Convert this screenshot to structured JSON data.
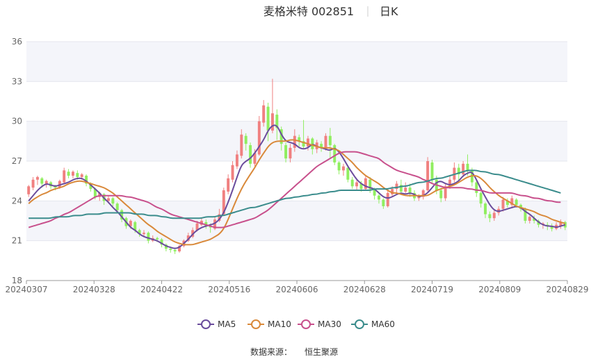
{
  "title": {
    "name": "麦格米特 002851",
    "period": "日K"
  },
  "source": {
    "label": "数据来源：",
    "value": "恒生聚源"
  },
  "colors": {
    "up": "#f08080",
    "down": "#90ee60",
    "ma5": "#6a4c9c",
    "ma10": "#d9893a",
    "ma30": "#c8508c",
    "ma60": "#3a8c8c",
    "band": "#f4f5fa",
    "grid": "#e4e6ee",
    "axis": "#999999"
  },
  "chart_data": {
    "type": "candlestick",
    "ylim": [
      18,
      36
    ],
    "yticks": [
      "18",
      "21",
      "24",
      "27",
      "30",
      "33",
      "36"
    ],
    "xticks": [
      "20240307",
      "20240328",
      "20240422",
      "20240516",
      "20240606",
      "20240628",
      "20240719",
      "20240809",
      "20240829"
    ],
    "legend": [
      "MA5",
      "MA10",
      "MA30",
      "MA60"
    ],
    "candles": [
      [
        24.5,
        25.1,
        25.2,
        24.3
      ],
      [
        25.0,
        25.6,
        25.8,
        24.8
      ],
      [
        25.6,
        25.8,
        25.9,
        25.2
      ],
      [
        25.7,
        25.3,
        25.8,
        25.0
      ],
      [
        25.3,
        25.5,
        25.6,
        25.0
      ],
      [
        25.4,
        25.1,
        25.5,
        24.9
      ],
      [
        25.1,
        25.0,
        25.2,
        24.8
      ],
      [
        25.0,
        25.5,
        25.6,
        24.9
      ],
      [
        25.4,
        26.3,
        26.5,
        25.3
      ],
      [
        26.2,
        25.9,
        26.4,
        25.7
      ],
      [
        25.9,
        26.2,
        26.3,
        25.7
      ],
      [
        26.1,
        25.8,
        26.3,
        25.6
      ],
      [
        25.8,
        26.0,
        26.1,
        25.6
      ],
      [
        25.9,
        25.3,
        26.0,
        25.1
      ],
      [
        25.3,
        24.9,
        25.4,
        24.7
      ],
      [
        24.9,
        24.3,
        25.0,
        24.1
      ],
      [
        24.3,
        24.6,
        24.7,
        24.0
      ],
      [
        24.5,
        24.0,
        24.6,
        23.7
      ],
      [
        24.0,
        24.2,
        24.4,
        23.8
      ],
      [
        24.2,
        23.8,
        24.3,
        23.6
      ],
      [
        23.8,
        23.3,
        23.9,
        23.1
      ],
      [
        23.3,
        22.6,
        23.4,
        22.4
      ],
      [
        22.7,
        22.1,
        22.8,
        21.9
      ],
      [
        22.1,
        22.5,
        22.6,
        21.9
      ],
      [
        22.4,
        21.8,
        22.5,
        21.6
      ],
      [
        21.8,
        21.5,
        21.9,
        21.3
      ],
      [
        21.5,
        21.6,
        21.8,
        21.3
      ],
      [
        21.6,
        21.0,
        21.7,
        20.8
      ],
      [
        21.0,
        21.2,
        21.4,
        20.9
      ],
      [
        21.2,
        21.1,
        21.3,
        20.9
      ],
      [
        21.1,
        20.7,
        21.2,
        20.5
      ],
      [
        20.7,
        20.4,
        20.8,
        20.2
      ],
      [
        20.4,
        20.3,
        20.5,
        20.1
      ],
      [
        20.3,
        20.2,
        20.4,
        20.0
      ],
      [
        20.2,
        20.6,
        20.7,
        20.1
      ],
      [
        20.6,
        21.0,
        21.1,
        20.5
      ],
      [
        21.0,
        21.4,
        21.6,
        20.9
      ],
      [
        21.3,
        21.8,
        22.0,
        21.2
      ],
      [
        21.8,
        22.3,
        22.5,
        21.7
      ],
      [
        22.2,
        22.5,
        22.7,
        22.1
      ],
      [
        22.4,
        22.1,
        22.6,
        21.9
      ],
      [
        22.1,
        22.0,
        22.3,
        21.6
      ],
      [
        21.9,
        22.6,
        22.8,
        21.8
      ],
      [
        22.5,
        23.0,
        23.4,
        22.4
      ],
      [
        23.0,
        24.8,
        25.0,
        22.9
      ],
      [
        24.7,
        25.7,
        26.0,
        24.5
      ],
      [
        25.6,
        26.7,
        27.0,
        25.4
      ],
      [
        26.6,
        27.5,
        27.8,
        26.4
      ],
      [
        27.4,
        29.0,
        29.4,
        27.2
      ],
      [
        28.9,
        28.3,
        29.1,
        27.8
      ],
      [
        28.2,
        26.8,
        28.4,
        26.5
      ],
      [
        26.8,
        27.6,
        27.9,
        26.6
      ],
      [
        27.5,
        30.0,
        30.4,
        27.4
      ],
      [
        29.9,
        31.2,
        31.6,
        29.6
      ],
      [
        31.1,
        29.3,
        31.4,
        28.5
      ],
      [
        29.3,
        30.6,
        33.2,
        29.1
      ],
      [
        30.5,
        29.5,
        30.9,
        28.6
      ],
      [
        29.4,
        28.3,
        29.6,
        27.8
      ],
      [
        28.2,
        27.2,
        28.4,
        26.9
      ],
      [
        27.2,
        28.0,
        28.3,
        26.9
      ],
      [
        28.0,
        28.9,
        29.4,
        27.7
      ],
      [
        28.8,
        28.5,
        29.0,
        28.1
      ],
      [
        28.5,
        28.1,
        30.1,
        27.9
      ],
      [
        28.1,
        28.7,
        28.9,
        27.8
      ],
      [
        28.7,
        27.9,
        28.8,
        27.5
      ],
      [
        27.9,
        28.4,
        28.6,
        27.6
      ],
      [
        28.3,
        28.0,
        28.5,
        27.7
      ],
      [
        28.0,
        28.9,
        29.1,
        27.8
      ],
      [
        28.9,
        28.2,
        29.5,
        27.2
      ],
      [
        28.2,
        26.9,
        28.3,
        26.7
      ],
      [
        26.9,
        26.3,
        27.0,
        26.0
      ],
      [
        26.3,
        26.6,
        26.8,
        25.9
      ],
      [
        26.5,
        25.6,
        26.7,
        25.4
      ],
      [
        25.6,
        25.1,
        25.8,
        24.9
      ],
      [
        25.1,
        25.4,
        25.6,
        24.8
      ],
      [
        25.3,
        24.9,
        25.5,
        24.7
      ],
      [
        24.9,
        25.7,
        25.9,
        24.8
      ],
      [
        25.6,
        24.9,
        25.8,
        24.6
      ],
      [
        24.9,
        24.4,
        25.0,
        24.1
      ],
      [
        24.4,
        24.1,
        24.5,
        23.8
      ],
      [
        24.1,
        23.6,
        24.2,
        23.4
      ],
      [
        23.6,
        24.6,
        24.8,
        23.5
      ],
      [
        24.5,
        24.9,
        25.1,
        24.3
      ],
      [
        24.9,
        25.3,
        25.5,
        24.6
      ],
      [
        25.2,
        24.7,
        25.6,
        24.5
      ],
      [
        24.7,
        25.0,
        25.4,
        24.6
      ],
      [
        25.0,
        24.6,
        25.3,
        24.3
      ],
      [
        24.6,
        24.2,
        24.8,
        24.0
      ],
      [
        24.2,
        24.3,
        24.5,
        24.0
      ],
      [
        24.3,
        24.8,
        24.9,
        24.1
      ],
      [
        24.8,
        27.0,
        27.3,
        24.7
      ],
      [
        26.9,
        25.6,
        27.1,
        25.3
      ],
      [
        25.6,
        24.8,
        25.9,
        24.5
      ],
      [
        24.8,
        24.2,
        25.0,
        23.9
      ],
      [
        24.2,
        25.1,
        25.3,
        24.0
      ],
      [
        25.1,
        25.6,
        25.9,
        24.9
      ],
      [
        25.6,
        26.5,
        26.9,
        25.4
      ],
      [
        26.5,
        26.0,
        26.8,
        25.5
      ],
      [
        26.0,
        26.8,
        27.0,
        25.8
      ],
      [
        26.8,
        26.3,
        27.5,
        25.9
      ],
      [
        26.3,
        25.4,
        26.5,
        25.1
      ],
      [
        25.4,
        24.6,
        25.6,
        24.3
      ],
      [
        24.6,
        23.8,
        24.7,
        23.5
      ],
      [
        23.8,
        23.0,
        23.9,
        22.7
      ],
      [
        23.0,
        22.7,
        23.2,
        22.4
      ],
      [
        22.7,
        23.1,
        23.3,
        22.5
      ],
      [
        23.1,
        23.4,
        23.6,
        22.9
      ],
      [
        23.4,
        24.1,
        24.3,
        23.2
      ],
      [
        24.0,
        23.7,
        24.2,
        23.5
      ],
      [
        23.7,
        24.2,
        24.4,
        23.5
      ],
      [
        24.1,
        23.7,
        24.2,
        23.5
      ],
      [
        23.7,
        23.4,
        23.8,
        23.2
      ],
      [
        23.4,
        22.5,
        23.5,
        22.3
      ],
      [
        22.5,
        22.8,
        22.9,
        22.3
      ],
      [
        22.7,
        22.5,
        22.9,
        22.3
      ],
      [
        22.5,
        22.2,
        22.6,
        22.0
      ],
      [
        22.2,
        22.3,
        22.4,
        21.9
      ],
      [
        22.2,
        22.1,
        22.4,
        21.8
      ],
      [
        22.1,
        21.9,
        22.3,
        21.7
      ],
      [
        21.9,
        22.2,
        22.4,
        21.8
      ],
      [
        22.1,
        22.4,
        22.6,
        21.9
      ],
      [
        22.4,
        22.0,
        22.5,
        21.8
      ]
    ],
    "series": [
      {
        "name": "MA5",
        "values": [
          24.0,
          24.4,
          24.8,
          25.1,
          25.3,
          25.2,
          25.1,
          25.2,
          25.3,
          25.4,
          25.6,
          25.7,
          25.7,
          25.5,
          25.2,
          24.9,
          24.6,
          24.2,
          23.9,
          23.5,
          23.2,
          22.8,
          22.4,
          22.0,
          21.8,
          21.5,
          21.3,
          21.2,
          21.1,
          21.0,
          20.8,
          20.6,
          20.5,
          20.4,
          20.5,
          20.8,
          21.1,
          21.5,
          21.8,
          22.0,
          22.1,
          22.2,
          22.3,
          22.6,
          23.1,
          23.9,
          24.8,
          25.8,
          26.7,
          27.0,
          27.2,
          27.6,
          28.1,
          28.6,
          29.3,
          29.7,
          29.7,
          29.0,
          28.5,
          28.4,
          28.3,
          28.0,
          27.9,
          28.0,
          28.3,
          28.1,
          28.0,
          27.9,
          27.8,
          28.0,
          27.7,
          27.2,
          26.6,
          26.1,
          25.6,
          25.3,
          25.1,
          25.0,
          24.9,
          24.6,
          24.3,
          24.2,
          24.3,
          24.5,
          24.6,
          24.5,
          24.6,
          24.5,
          24.3,
          24.4,
          24.6,
          25.0,
          25.4,
          25.5,
          25.3,
          25.2,
          25.3,
          25.5,
          25.9,
          26.1,
          26.2,
          25.6,
          24.9,
          24.3,
          23.7,
          23.3,
          23.2,
          23.3,
          23.4,
          23.5,
          23.6,
          23.5,
          23.2,
          23.0,
          22.7,
          22.4,
          22.2,
          22.1,
          22.1,
          22.0,
          22.1,
          22.2
        ]
      },
      {
        "name": "MA10",
        "values": [
          23.8,
          24.1,
          24.3,
          24.5,
          24.6,
          24.8,
          24.9,
          25.0,
          25.1,
          25.3,
          25.4,
          25.5,
          25.5,
          25.4,
          25.3,
          25.2,
          25.1,
          25.0,
          24.8,
          24.6,
          24.3,
          24.0,
          23.7,
          23.4,
          23.1,
          22.8,
          22.5,
          22.2,
          22.0,
          21.7,
          21.5,
          21.3,
          21.1,
          20.9,
          20.8,
          20.7,
          20.7,
          20.7,
          20.8,
          20.9,
          21.0,
          21.1,
          21.3,
          21.5,
          21.9,
          22.6,
          23.4,
          24.2,
          24.9,
          25.5,
          26.0,
          26.5,
          27.1,
          27.6,
          28.1,
          28.4,
          28.5,
          28.5,
          28.5,
          28.6,
          28.6,
          28.5,
          28.4,
          28.3,
          28.2,
          28.1,
          28.0,
          28.0,
          28.0,
          27.9,
          27.8,
          27.5,
          27.2,
          26.9,
          26.5,
          26.2,
          25.9,
          25.7,
          25.5,
          25.3,
          25.0,
          24.8,
          24.6,
          24.6,
          24.5,
          24.4,
          24.4,
          24.4,
          24.4,
          24.4,
          24.4,
          24.6,
          24.8,
          24.9,
          25.0,
          25.1,
          25.2,
          25.4,
          25.6,
          25.8,
          25.9,
          25.9,
          25.7,
          25.4,
          25.0,
          24.7,
          24.4,
          24.2,
          24.0,
          23.8,
          23.6,
          23.5,
          23.4,
          23.3,
          23.2,
          23.0,
          22.9,
          22.8,
          22.6,
          22.5,
          22.4,
          22.3
        ]
      },
      {
        "name": "MA30",
        "values": [
          22.0,
          22.1,
          22.2,
          22.3,
          22.4,
          22.5,
          22.7,
          22.8,
          23.0,
          23.1,
          23.3,
          23.5,
          23.7,
          23.9,
          24.1,
          24.3,
          24.4,
          24.4,
          24.4,
          24.4,
          24.4,
          24.4,
          24.3,
          24.3,
          24.2,
          24.1,
          24.0,
          23.9,
          23.7,
          23.5,
          23.4,
          23.2,
          23.0,
          22.9,
          22.8,
          22.7,
          22.6,
          22.5,
          22.4,
          22.3,
          22.2,
          22.1,
          22.0,
          22.0,
          22.0,
          22.1,
          22.2,
          22.3,
          22.4,
          22.5,
          22.6,
          22.7,
          22.9,
          23.1,
          23.3,
          23.6,
          23.9,
          24.2,
          24.5,
          24.8,
          25.1,
          25.4,
          25.7,
          26.0,
          26.3,
          26.6,
          26.8,
          27.0,
          27.2,
          27.4,
          27.6,
          27.7,
          27.7,
          27.7,
          27.7,
          27.6,
          27.5,
          27.4,
          27.3,
          27.2,
          26.9,
          26.7,
          26.5,
          26.3,
          26.2,
          26.1,
          26.0,
          25.9,
          25.8,
          25.6,
          25.5,
          25.3,
          25.2,
          25.1,
          25.0,
          25.0,
          25.0,
          25.0,
          25.0,
          24.9,
          24.9,
          24.8,
          24.8,
          24.7,
          24.6,
          24.6,
          24.6,
          24.6,
          24.6,
          24.6,
          24.5,
          24.4,
          24.4,
          24.3,
          24.2,
          24.2,
          24.1,
          24.0,
          24.0,
          23.9,
          23.9
        ]
      },
      {
        "name": "MA60",
        "values": [
          22.7,
          22.7,
          22.7,
          22.7,
          22.7,
          22.7,
          22.8,
          22.8,
          22.8,
          22.8,
          22.9,
          22.9,
          22.9,
          23.0,
          23.0,
          23.0,
          23.0,
          23.1,
          23.1,
          23.1,
          23.1,
          23.1,
          23.1,
          23.1,
          23.0,
          23.0,
          23.0,
          22.9,
          22.9,
          22.9,
          22.8,
          22.8,
          22.7,
          22.7,
          22.7,
          22.7,
          22.7,
          22.7,
          22.7,
          22.7,
          22.8,
          22.8,
          22.8,
          22.9,
          22.9,
          23.0,
          23.1,
          23.2,
          23.3,
          23.4,
          23.5,
          23.5,
          23.6,
          23.7,
          23.8,
          23.9,
          24.0,
          24.1,
          24.2,
          24.2,
          24.3,
          24.3,
          24.4,
          24.4,
          24.5,
          24.5,
          24.6,
          24.6,
          24.7,
          24.7,
          24.8,
          24.8,
          24.8,
          24.8,
          24.8,
          24.8,
          24.8,
          24.8,
          24.9,
          24.9,
          24.9,
          24.9,
          25.0,
          25.0,
          25.1,
          25.1,
          25.2,
          25.3,
          25.4,
          25.4,
          25.5,
          25.6,
          25.7,
          25.7,
          25.8,
          25.9,
          26.0,
          26.1,
          26.2,
          26.3,
          26.3,
          26.3,
          26.2,
          26.2,
          26.1,
          26.0,
          26.0,
          25.9,
          25.8,
          25.7,
          25.6,
          25.5,
          25.4,
          25.3,
          25.2,
          25.1,
          25.0,
          24.9,
          24.8,
          24.7,
          24.6
        ]
      }
    ]
  }
}
